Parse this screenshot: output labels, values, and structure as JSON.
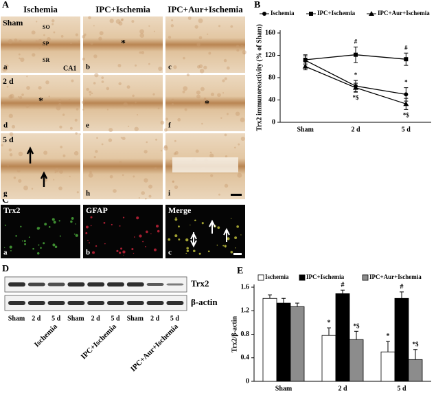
{
  "figure_a": {
    "label": "A",
    "columns": [
      "Ischemia",
      "IPC+Ischemia",
      "IPC+Aur+Ischemia"
    ],
    "rows": [
      "Sham",
      "2 d",
      "5 d"
    ],
    "letters": [
      "a",
      "b",
      "c",
      "d",
      "e",
      "f",
      "g",
      "h",
      "i"
    ],
    "layers": [
      "SO",
      "SP",
      "SR"
    ],
    "region": "CA1",
    "stars": [
      "*",
      "*",
      "*"
    ]
  },
  "figure_c": {
    "label": "C",
    "titles": [
      "Trx2",
      "GFAP",
      "Merge"
    ],
    "letters": [
      "a",
      "b",
      "c"
    ]
  },
  "figure_d": {
    "label": "D",
    "bands": [
      "Trx2",
      "β-actin"
    ],
    "lanes": [
      "Sham",
      "2 d",
      "5 d",
      "Sham",
      "2 d",
      "5 d",
      "Sham",
      "2 d",
      "5 d"
    ],
    "groups": [
      "Ischemia",
      "IPC+Ischemia",
      "IPC+Aur+Ischemia"
    ]
  },
  "chart_data": [
    {
      "panel": "B",
      "type": "line",
      "ylabel": "Trx2 immunoreactivity  (% of Sham)",
      "categories": [
        "Sham",
        "2 d",
        "5 d"
      ],
      "ylim": [
        0,
        160
      ],
      "yticks": [
        0,
        40,
        80,
        120,
        160
      ],
      "series": [
        {
          "name": "Ischemia",
          "color": "#000000",
          "marker": "circle",
          "values": [
            111,
            65,
            50
          ],
          "errors": [
            8,
            10,
            12
          ],
          "annotations": [
            null,
            "*",
            "*"
          ]
        },
        {
          "name": "IPC+Ischemia",
          "color": "#000000",
          "marker": "square",
          "values": [
            112,
            121,
            113
          ],
          "errors": [
            9,
            14,
            11
          ],
          "annotations": [
            null,
            "#",
            "#"
          ]
        },
        {
          "name": "IPC+Aur+Ischemia",
          "color": "#000000",
          "marker": "triangle",
          "values": [
            100,
            62,
            33
          ],
          "errors": [
            6,
            8,
            10
          ],
          "annotations": [
            null,
            "*$",
            "*$"
          ]
        }
      ]
    },
    {
      "panel": "E",
      "type": "bar",
      "ylabel": "Trx2/β-actin",
      "categories": [
        "Sham",
        "2 d",
        "5 d"
      ],
      "ylim": [
        0,
        1.6
      ],
      "yticks": [
        0,
        0.4,
        0.8,
        1.2,
        1.6
      ],
      "series": [
        {
          "name": "Ischemia",
          "color": "#ffffff",
          "values": [
            1.41,
            0.78,
            0.5
          ],
          "errors": [
            0.06,
            0.13,
            0.18
          ],
          "annotations": [
            null,
            "*",
            "*"
          ]
        },
        {
          "name": "IPC+Ischemia",
          "color": "#000000",
          "values": [
            1.33,
            1.49,
            1.41
          ],
          "errors": [
            0.08,
            0.06,
            0.11
          ],
          "annotations": [
            null,
            "#",
            "#"
          ]
        },
        {
          "name": "IPC+Aur+Ischemia",
          "color": "#8c8c8c",
          "values": [
            1.27,
            0.71,
            0.37
          ],
          "errors": [
            0.06,
            0.14,
            0.17
          ],
          "annotations": [
            null,
            "*$",
            "*$"
          ]
        }
      ]
    }
  ]
}
